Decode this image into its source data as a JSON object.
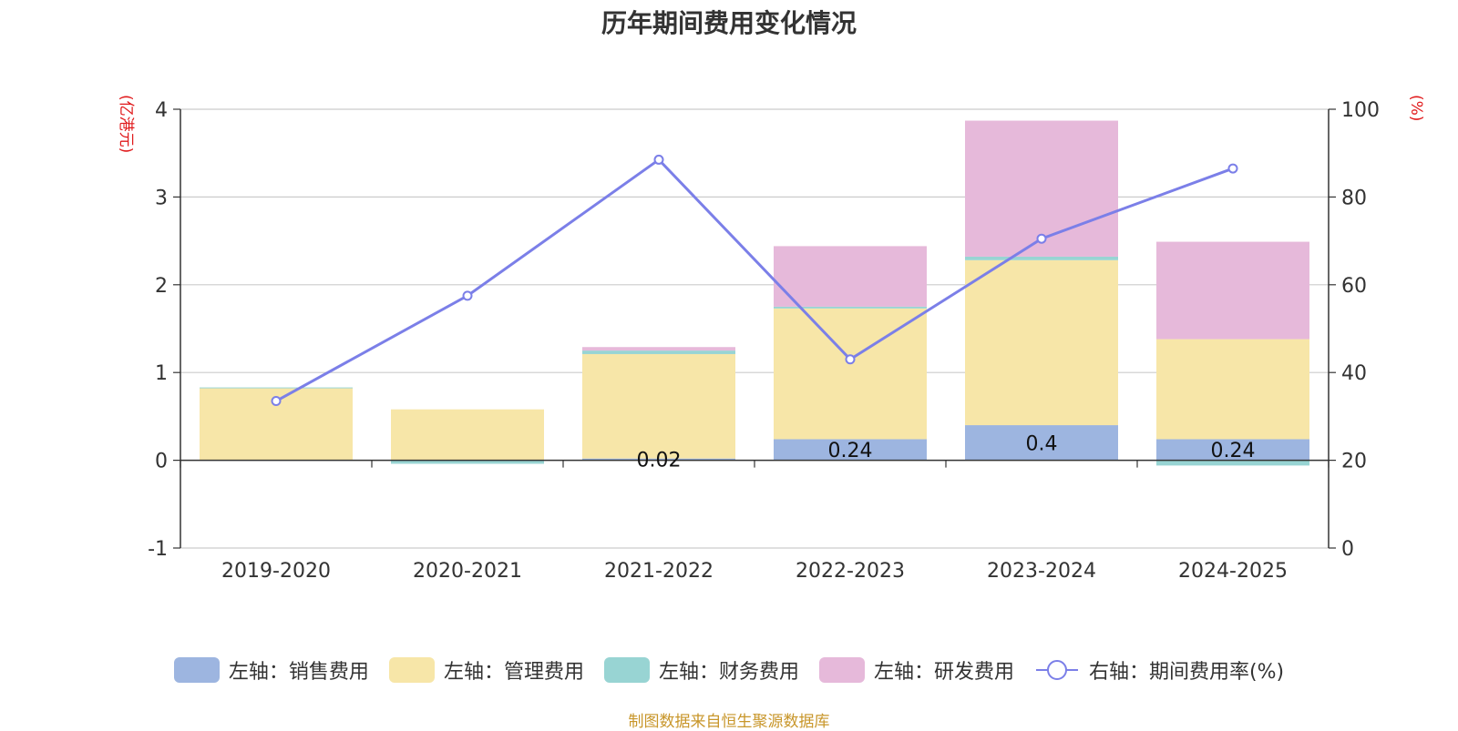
{
  "chart_data": {
    "type": "bar",
    "title": "历年期间费用变化情况",
    "categories": [
      "2019-2020",
      "2020-2021",
      "2021-2022",
      "2022-2023",
      "2023-2024",
      "2024-2025"
    ],
    "left_axis": {
      "unit": "(亿港元)",
      "ylim": [
        -1,
        4
      ],
      "ticks": [
        "-1",
        "0",
        "1",
        "2",
        "3",
        "4"
      ]
    },
    "right_axis": {
      "unit": "(%)",
      "ylim": [
        0,
        100
      ],
      "ticks": [
        "0",
        "20",
        "40",
        "60",
        "80",
        "100"
      ]
    },
    "series": [
      {
        "name": "左轴：销售费用",
        "type": "bar",
        "axis": "left",
        "color": "#9db5e0",
        "values": [
          0,
          0,
          0.02,
          0.24,
          0.4,
          0.24
        ],
        "labels": [
          "",
          "",
          "0.02",
          "0.24",
          "0.4",
          "0.24"
        ]
      },
      {
        "name": "左轴：管理费用",
        "type": "bar",
        "axis": "left",
        "color": "#f7e6a8",
        "values": [
          0.82,
          0.58,
          1.19,
          1.49,
          1.88,
          1.14
        ]
      },
      {
        "name": "左轴：财务费用",
        "type": "bar",
        "axis": "left",
        "color": "#98d4d3",
        "values": [
          0.01,
          -0.04,
          0.04,
          0.02,
          0.04,
          -0.06
        ]
      },
      {
        "name": "左轴：研发费用",
        "type": "bar",
        "axis": "left",
        "color": "#e6b9da",
        "values": [
          0,
          0,
          0.04,
          0.69,
          1.55,
          1.11
        ]
      },
      {
        "name": "右轴：期间费用率(%)",
        "type": "line",
        "axis": "right",
        "color": "#7b7fe8",
        "values": [
          33.5,
          57.5,
          88.5,
          43,
          70.5,
          86.5
        ]
      }
    ],
    "grid": true,
    "legend_position": "bottom"
  },
  "source": "制图数据来自恒生聚源数据库"
}
